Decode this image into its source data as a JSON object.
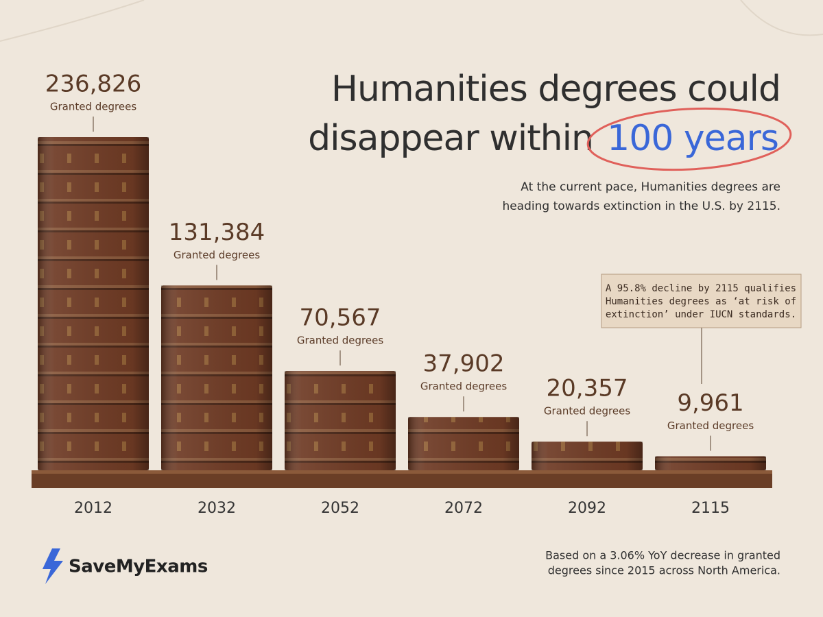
{
  "chart_data": {
    "type": "bar",
    "title_lines": [
      "Humanities degrees could",
      "disappear within"
    ],
    "title_highlight": "100 years",
    "subtitle_lines": [
      "At the current pace, Humanities degrees are",
      "heading towards extinction in the U.S. by 2115."
    ],
    "categories": [
      "2012",
      "2032",
      "2052",
      "2072",
      "2092",
      "2115"
    ],
    "values": [
      236826,
      131384,
      70567,
      37902,
      20357,
      9961
    ],
    "value_labels": [
      "236,826",
      "131,384",
      "70,567",
      "37,902",
      "20,357",
      "9,961"
    ],
    "value_caption": "Granted degrees",
    "color": "#6e3a24",
    "annotation_lines": [
      "A 95.8% decline by 2115 qualifies",
      "Humanities degrees as ‘at risk of",
      "extinction’ under IUCN standards."
    ],
    "footnote_lines": [
      "Based on a 3.06% YoY decrease in granted",
      "degrees since 2015 across North America."
    ],
    "brand": "SaveMyExams"
  }
}
